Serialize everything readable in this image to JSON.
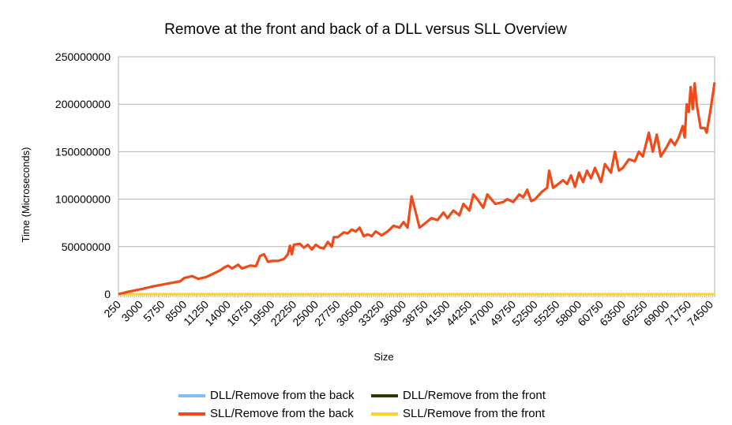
{
  "chart_data": {
    "type": "line",
    "title": "Remove at the front and back of a DLL versus SLL Overview",
    "xlabel": "Size",
    "ylabel": "Time (Microseconds)",
    "ylim": [
      0,
      250000000
    ],
    "y_ticks": [
      "0",
      "50000000",
      "100000000",
      "150000000",
      "200000000",
      "250000000"
    ],
    "x_tick_labels": [
      "250",
      "3000",
      "5750",
      "8500",
      "11250",
      "14000",
      "16750",
      "19500",
      "22250",
      "25000",
      "27750",
      "30500",
      "33250",
      "36000",
      "38750",
      "41500",
      "44250",
      "47000",
      "49750",
      "52500",
      "55250",
      "58000",
      "60750",
      "63500",
      "66250",
      "69000",
      "71750",
      "74500"
    ],
    "x_start": 250,
    "x_end": 75000,
    "x_step": 250,
    "grid": "horizontal",
    "legend_position": "bottom",
    "series": [
      {
        "name": "DLL/Remove from the back",
        "color": "#7fbfff",
        "points": [
          [
            250,
            0
          ],
          [
            75000,
            0
          ]
        ]
      },
      {
        "name": "DLL/Remove from the front",
        "color": "#2d3a00",
        "points": [
          [
            250,
            0
          ],
          [
            75000,
            0
          ]
        ]
      },
      {
        "name": "SLL/Remove from the back",
        "color": "#f04a18",
        "points": [
          [
            250,
            0
          ],
          [
            1500,
            2500000
          ],
          [
            3000,
            5000000
          ],
          [
            4500,
            8000000
          ],
          [
            5750,
            10000000
          ],
          [
            7000,
            12000000
          ],
          [
            8000,
            13500000
          ],
          [
            8500,
            17000000
          ],
          [
            9500,
            19000000
          ],
          [
            10250,
            16000000
          ],
          [
            11250,
            18000000
          ],
          [
            12250,
            22000000
          ],
          [
            13000,
            25000000
          ],
          [
            13500,
            28000000
          ],
          [
            14000,
            30000000
          ],
          [
            14500,
            27000000
          ],
          [
            15250,
            31000000
          ],
          [
            15750,
            27000000
          ],
          [
            16750,
            30000000
          ],
          [
            17500,
            29500000
          ],
          [
            18000,
            40000000
          ],
          [
            18500,
            42000000
          ],
          [
            19000,
            34000000
          ],
          [
            19500,
            35000000
          ],
          [
            20250,
            35000000
          ],
          [
            21000,
            37000000
          ],
          [
            21500,
            42000000
          ],
          [
            21750,
            51000000
          ],
          [
            22000,
            42000000
          ],
          [
            22250,
            52000000
          ],
          [
            23000,
            53000000
          ],
          [
            23500,
            49000000
          ],
          [
            24000,
            52000000
          ],
          [
            24500,
            47000000
          ],
          [
            25000,
            52000000
          ],
          [
            25500,
            49000000
          ],
          [
            26000,
            48000000
          ],
          [
            26500,
            55000000
          ],
          [
            27000,
            50000000
          ],
          [
            27250,
            60000000
          ],
          [
            27750,
            60000000
          ],
          [
            28500,
            65000000
          ],
          [
            29000,
            64000000
          ],
          [
            29500,
            68000000
          ],
          [
            30000,
            66000000
          ],
          [
            30500,
            70000000
          ],
          [
            31000,
            61000000
          ],
          [
            31500,
            63000000
          ],
          [
            32000,
            61000000
          ],
          [
            32500,
            66000000
          ],
          [
            33250,
            62000000
          ],
          [
            34000,
            66000000
          ],
          [
            34750,
            72000000
          ],
          [
            35500,
            70000000
          ],
          [
            36000,
            76000000
          ],
          [
            36500,
            70000000
          ],
          [
            37000,
            103000000
          ],
          [
            37500,
            87000000
          ],
          [
            38000,
            70000000
          ],
          [
            38750,
            75000000
          ],
          [
            39500,
            80000000
          ],
          [
            40250,
            78000000
          ],
          [
            41000,
            86000000
          ],
          [
            41500,
            80000000
          ],
          [
            42250,
            88000000
          ],
          [
            43000,
            83000000
          ],
          [
            43500,
            95000000
          ],
          [
            44250,
            88000000
          ],
          [
            44750,
            105000000
          ],
          [
            45250,
            100000000
          ],
          [
            46000,
            91000000
          ],
          [
            46500,
            105000000
          ],
          [
            47000,
            100000000
          ],
          [
            47500,
            95000000
          ],
          [
            48500,
            97000000
          ],
          [
            49000,
            100000000
          ],
          [
            49750,
            97000000
          ],
          [
            50500,
            105000000
          ],
          [
            51000,
            102000000
          ],
          [
            51500,
            110000000
          ],
          [
            52000,
            98000000
          ],
          [
            52500,
            100000000
          ],
          [
            53250,
            107000000
          ],
          [
            54000,
            112000000
          ],
          [
            54250,
            130000000
          ],
          [
            54750,
            112000000
          ],
          [
            55250,
            115000000
          ],
          [
            56000,
            120000000
          ],
          [
            56500,
            116000000
          ],
          [
            57000,
            125000000
          ],
          [
            57500,
            113000000
          ],
          [
            58000,
            128000000
          ],
          [
            58500,
            118000000
          ],
          [
            59000,
            130000000
          ],
          [
            59500,
            122000000
          ],
          [
            60000,
            133000000
          ],
          [
            60750,
            118000000
          ],
          [
            61250,
            137000000
          ],
          [
            62000,
            128000000
          ],
          [
            62500,
            150000000
          ],
          [
            63000,
            130000000
          ],
          [
            63500,
            133000000
          ],
          [
            64250,
            142000000
          ],
          [
            65000,
            140000000
          ],
          [
            65500,
            150000000
          ],
          [
            66000,
            145000000
          ],
          [
            66750,
            170000000
          ],
          [
            67250,
            150000000
          ],
          [
            67750,
            168000000
          ],
          [
            68250,
            145000000
          ],
          [
            69000,
            155000000
          ],
          [
            69500,
            163000000
          ],
          [
            70000,
            157000000
          ],
          [
            70500,
            165000000
          ],
          [
            71000,
            177000000
          ],
          [
            71250,
            165000000
          ],
          [
            71500,
            200000000
          ],
          [
            71750,
            192000000
          ],
          [
            72000,
            218000000
          ],
          [
            72250,
            195000000
          ],
          [
            72500,
            222000000
          ],
          [
            72750,
            200000000
          ],
          [
            73250,
            175000000
          ],
          [
            73750,
            175000000
          ],
          [
            74000,
            170000000
          ],
          [
            74500,
            195000000
          ],
          [
            75000,
            223000000
          ]
        ]
      },
      {
        "name": "SLL/Remove from the front",
        "color": "#ffd320",
        "points": [
          [
            250,
            0
          ],
          [
            75000,
            0
          ]
        ]
      }
    ]
  }
}
